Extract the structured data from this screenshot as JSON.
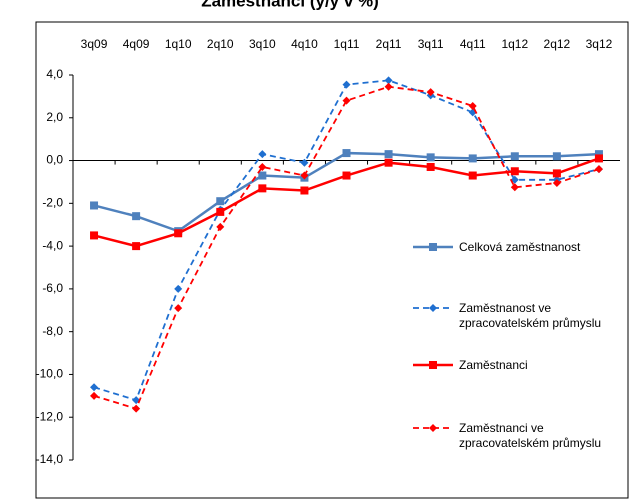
{
  "chart_data": {
    "type": "line",
    "title": "Zaměstnanci (y/y v %)",
    "categories": [
      "3q09",
      "4q09",
      "1q10",
      "2q10",
      "3q10",
      "4q10",
      "1q11",
      "2q11",
      "3q11",
      "4q11",
      "1q12",
      "2q12",
      "3q12"
    ],
    "series": [
      {
        "name": "Celková zaměstnanost",
        "color": "#4f81bd",
        "dashed": false,
        "marker": "square",
        "values": [
          -2.1,
          -2.6,
          -3.3,
          -1.9,
          -0.7,
          -0.8,
          0.35,
          0.3,
          0.15,
          0.1,
          0.2,
          0.2,
          0.3
        ]
      },
      {
        "name": "Zaměstnanost ve zpracovatelském průmyslu",
        "color": "#1f6fd0",
        "dashed": true,
        "marker": "diamond",
        "values": [
          -10.6,
          -11.2,
          -6.0,
          -2.3,
          0.3,
          -0.1,
          3.55,
          3.75,
          3.05,
          2.25,
          -0.9,
          -0.9,
          -0.4
        ]
      },
      {
        "name": "Zaměstnanci",
        "color": "#ff0000",
        "dashed": false,
        "marker": "square",
        "values": [
          -3.5,
          -4.0,
          -3.4,
          -2.4,
          -1.3,
          -1.4,
          -0.7,
          -0.1,
          -0.3,
          -0.7,
          -0.5,
          -0.6,
          0.1
        ]
      },
      {
        "name": "Zaměstnanci ve zpracovatelském průmyslu",
        "color": "#ff0000",
        "dashed": true,
        "marker": "diamond",
        "values": [
          -11.0,
          -11.6,
          -6.9,
          -3.1,
          -0.3,
          -0.7,
          2.8,
          3.45,
          3.2,
          2.55,
          -1.25,
          -1.05,
          -0.4
        ]
      }
    ],
    "ylim": [
      -14,
      4
    ],
    "yticks": [
      {
        "value": -14,
        "label": "-14,0"
      },
      {
        "value": -12,
        "label": "-12,0"
      },
      {
        "value": -10,
        "label": "-10,0"
      },
      {
        "value": -8,
        "label": "-8,0"
      },
      {
        "value": -6,
        "label": "-6,0"
      },
      {
        "value": -4,
        "label": "-4,0"
      },
      {
        "value": -2,
        "label": "-2,0"
      },
      {
        "value": 0,
        "label": "0,0"
      },
      {
        "value": 2,
        "label": "2,0"
      },
      {
        "value": 4,
        "label": "4,0"
      }
    ],
    "grid": false
  }
}
